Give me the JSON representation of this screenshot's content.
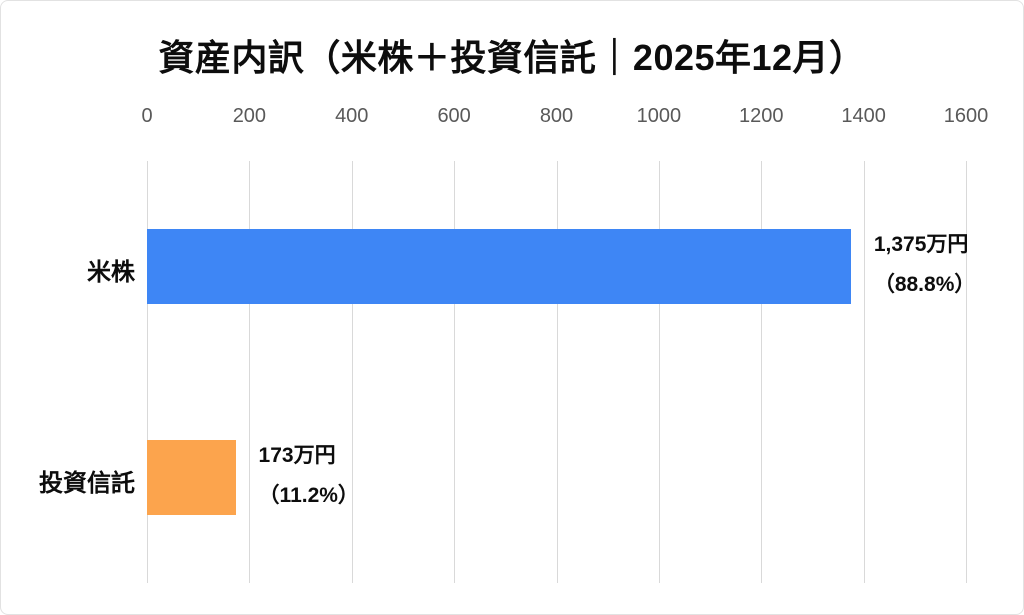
{
  "chart_data": {
    "type": "bar",
    "orientation": "horizontal",
    "title": "資産内訳（米株＋投資信託｜2025年12月）",
    "categories": [
      "米株",
      "投資信託"
    ],
    "values": [
      1375,
      173
    ],
    "data_labels": [
      {
        "line1": "1,375万円",
        "line2": "（88.8%）"
      },
      {
        "line1": "173万円",
        "line2": "（11.2%）"
      }
    ],
    "bar_colors": [
      "#3e86f5",
      "#fca44d"
    ],
    "xlim": [
      0,
      1600
    ],
    "x_ticks": [
      0,
      200,
      400,
      600,
      800,
      1000,
      1200,
      1400,
      1600
    ],
    "tick_label_position": "top",
    "grid": true,
    "legend": "none",
    "xlabel": "",
    "ylabel": ""
  },
  "colors": {
    "gridline": "#d9d9d9",
    "tick_label": "#595959",
    "text": "#0d0d0d",
    "background": "#ffffff",
    "frame_border": "#e2e2e2"
  }
}
